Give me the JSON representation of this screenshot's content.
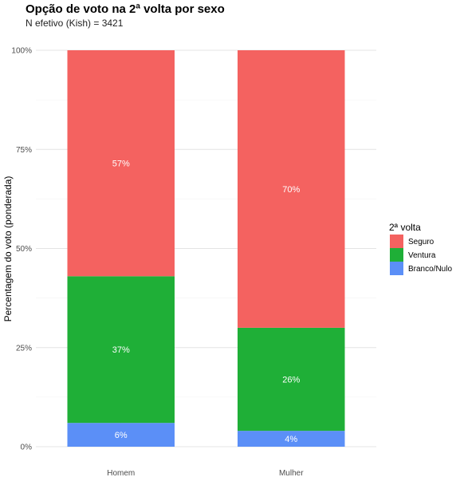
{
  "chart_data": {
    "type": "bar",
    "stacked": true,
    "title": "Opção de voto na 2ª volta por sexo",
    "subtitle": "N efetivo (Kish) = 3421",
    "xlabel": "",
    "ylabel": "Percentagem do voto (ponderada)",
    "categories": [
      "Homem",
      "Mulher"
    ],
    "ylim": [
      0,
      100
    ],
    "yticks": [
      "0%",
      "25%",
      "50%",
      "75%",
      "100%"
    ],
    "grid": true,
    "legend_title": "2ª volta",
    "legend_position": "right",
    "series": [
      {
        "name": "Branco/Nulo",
        "color": "#5b8ff7",
        "values": [
          6,
          4
        ],
        "labels": [
          "6%",
          "4%"
        ]
      },
      {
        "name": "Ventura",
        "color": "#1faf37",
        "values": [
          37,
          26
        ],
        "labels": [
          "37%",
          "26%"
        ]
      },
      {
        "name": "Seguro",
        "color": "#f46260",
        "values": [
          57,
          70
        ],
        "labels": [
          "57%",
          "70%"
        ]
      }
    ],
    "legend_order": [
      "Seguro",
      "Ventura",
      "Branco/Nulo"
    ]
  }
}
